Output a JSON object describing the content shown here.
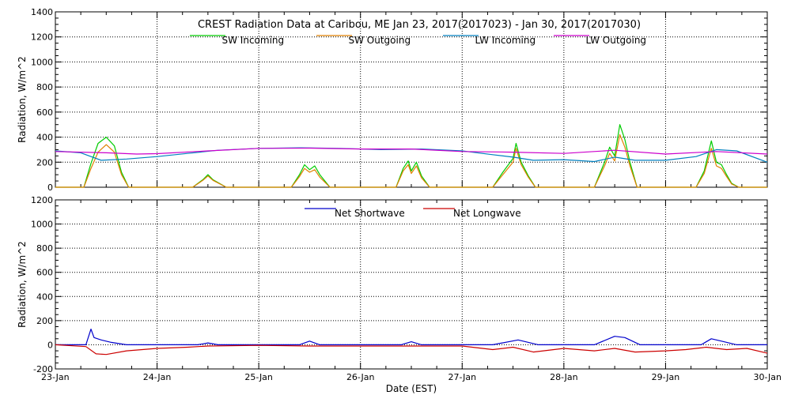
{
  "chart_data": [
    {
      "type": "line",
      "title": "CREST Radiation Data at Caribou, ME   Jan 23, 2017(2017023) - Jan 30, 2017(2017030)",
      "xlabel": "",
      "ylabel": "Radiation, W/m^2",
      "xlim": [
        0,
        7
      ],
      "ylim": [
        0,
        1400
      ],
      "yticks": [
        0,
        200,
        400,
        600,
        800,
        1000,
        1200,
        1400
      ],
      "grid": true,
      "legend_position": "top",
      "series": [
        {
          "name": "SW Incoming",
          "color": "#00cc00",
          "x": [
            0,
            0.28,
            0.35,
            0.42,
            0.5,
            0.58,
            0.65,
            0.72,
            1.0,
            1.35,
            1.45,
            1.5,
            1.55,
            1.68,
            2.0,
            2.32,
            2.4,
            2.45,
            2.5,
            2.55,
            2.6,
            2.7,
            3.0,
            3.35,
            3.42,
            3.47,
            3.5,
            3.55,
            3.6,
            3.68,
            4.0,
            4.3,
            4.4,
            4.5,
            4.53,
            4.58,
            4.65,
            4.72,
            5.0,
            5.3,
            5.4,
            5.45,
            5.5,
            5.55,
            5.6,
            5.65,
            5.72,
            6.0,
            6.3,
            6.38,
            6.45,
            6.5,
            6.55,
            6.6,
            6.65,
            6.72,
            7.0
          ],
          "y": [
            0,
            0,
            190,
            350,
            400,
            330,
            120,
            0,
            0,
            0,
            60,
            100,
            60,
            0,
            0,
            0,
            100,
            180,
            140,
            170,
            100,
            0,
            0,
            0,
            150,
            210,
            130,
            200,
            90,
            0,
            0,
            0,
            120,
            230,
            350,
            200,
            90,
            0,
            0,
            0,
            200,
            320,
            250,
            500,
            380,
            200,
            0,
            0,
            0,
            130,
            370,
            200,
            180,
            100,
            30,
            0,
            0
          ]
        },
        {
          "name": "SW Outgoing",
          "color": "#e08000",
          "x": [
            0,
            0.28,
            0.35,
            0.42,
            0.5,
            0.58,
            0.65,
            0.72,
            1.0,
            1.35,
            1.45,
            1.5,
            1.55,
            1.68,
            2.0,
            2.32,
            2.4,
            2.45,
            2.5,
            2.55,
            2.6,
            2.7,
            3.0,
            3.35,
            3.42,
            3.47,
            3.5,
            3.55,
            3.6,
            3.68,
            4.0,
            4.3,
            4.4,
            4.5,
            4.53,
            4.58,
            4.65,
            4.72,
            5.0,
            5.3,
            5.4,
            5.45,
            5.5,
            5.55,
            5.6,
            5.65,
            5.72,
            6.0,
            6.3,
            6.38,
            6.45,
            6.5,
            6.55,
            6.6,
            6.65,
            6.72,
            7.0
          ],
          "y": [
            0,
            0,
            150,
            280,
            340,
            280,
            100,
            0,
            0,
            0,
            55,
            90,
            55,
            0,
            0,
            0,
            85,
            150,
            120,
            140,
            80,
            0,
            0,
            0,
            130,
            180,
            110,
            170,
            75,
            0,
            0,
            0,
            100,
            200,
            310,
            180,
            80,
            0,
            0,
            0,
            170,
            270,
            210,
            420,
            320,
            170,
            0,
            0,
            0,
            110,
            310,
            170,
            150,
            85,
            25,
            0,
            0
          ]
        },
        {
          "name": "LW Incoming",
          "color": "#0080c0",
          "x": [
            0,
            0.25,
            0.45,
            0.7,
            1.0,
            1.3,
            1.6,
            2.0,
            2.4,
            2.8,
            3.2,
            3.6,
            4.0,
            4.3,
            4.5,
            4.7,
            5.0,
            5.3,
            5.5,
            5.7,
            6.0,
            6.3,
            6.5,
            6.7,
            7.0
          ],
          "y": [
            290,
            275,
            215,
            225,
            245,
            270,
            295,
            310,
            315,
            310,
            300,
            305,
            290,
            260,
            240,
            215,
            220,
            205,
            240,
            215,
            215,
            245,
            300,
            290,
            200
          ]
        },
        {
          "name": "LW Outgoing",
          "color": "#cc00cc",
          "x": [
            0,
            0.5,
            0.8,
            1.0,
            1.5,
            2.0,
            2.5,
            3.0,
            3.5,
            4.0,
            4.5,
            5.0,
            5.5,
            6.0,
            6.5,
            7.0
          ],
          "y": [
            285,
            275,
            265,
            268,
            290,
            310,
            312,
            305,
            305,
            285,
            280,
            270,
            295,
            265,
            285,
            265
          ]
        }
      ]
    },
    {
      "type": "line",
      "title": "",
      "xlabel": "Date (EST)",
      "ylabel": "Radiation, W/m^2",
      "xlim": [
        0,
        7
      ],
      "ylim": [
        -200,
        1200
      ],
      "yticks": [
        -200,
        0,
        200,
        400,
        600,
        800,
        1000,
        1200
      ],
      "grid": true,
      "legend_position": "top",
      "categories": [
        "23-Jan",
        "24-Jan",
        "25-Jan",
        "26-Jan",
        "27-Jan",
        "28-Jan",
        "29-Jan",
        "30-Jan"
      ],
      "series": [
        {
          "name": "Net Shortwave",
          "color": "#0000cc",
          "x": [
            0,
            0.3,
            0.35,
            0.38,
            0.45,
            0.55,
            0.7,
            1.0,
            1.4,
            1.5,
            1.6,
            2.0,
            2.4,
            2.5,
            2.6,
            3.0,
            3.4,
            3.5,
            3.6,
            4.0,
            4.3,
            4.55,
            4.75,
            5.0,
            5.3,
            5.5,
            5.6,
            5.75,
            6.0,
            6.35,
            6.45,
            6.55,
            6.7,
            7.0
          ],
          "y": [
            0,
            0,
            130,
            60,
            40,
            20,
            0,
            0,
            0,
            15,
            0,
            0,
            0,
            30,
            0,
            0,
            0,
            25,
            0,
            0,
            0,
            40,
            0,
            0,
            0,
            70,
            60,
            0,
            0,
            0,
            50,
            30,
            0,
            0
          ]
        },
        {
          "name": "Net Longwave",
          "color": "#cc0000",
          "x": [
            0,
            0.3,
            0.4,
            0.5,
            0.7,
            1.0,
            1.3,
            1.5,
            2.0,
            2.5,
            3.0,
            3.5,
            4.0,
            4.3,
            4.5,
            4.7,
            5.0,
            5.3,
            5.5,
            5.7,
            6.0,
            6.2,
            6.4,
            6.6,
            6.8,
            7.0
          ],
          "y": [
            0,
            -15,
            -75,
            -80,
            -50,
            -30,
            -20,
            -10,
            -5,
            -10,
            -10,
            -10,
            -10,
            -40,
            -20,
            -60,
            -30,
            -50,
            -30,
            -60,
            -50,
            -40,
            -20,
            -40,
            -30,
            -70
          ]
        }
      ]
    }
  ]
}
